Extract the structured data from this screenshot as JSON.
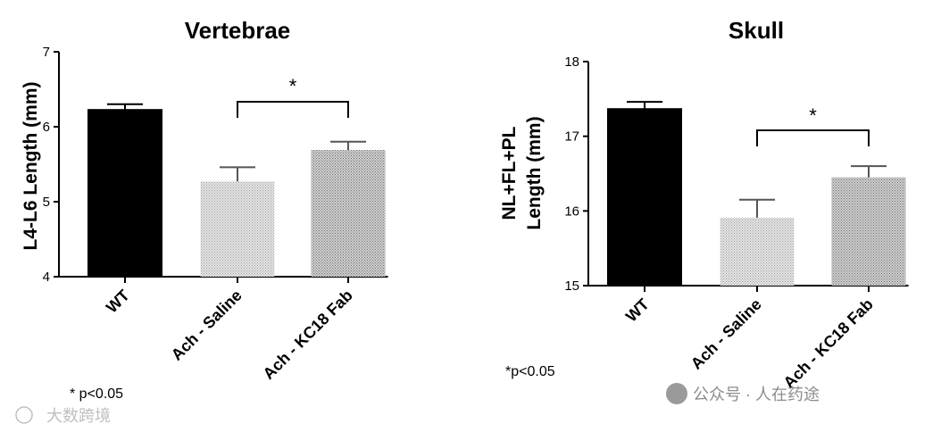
{
  "chart_data": [
    {
      "type": "bar",
      "title": "Vertebrae",
      "ylabel": "L4-L6 Length (mm)",
      "xlabel": "",
      "ylim": [
        4,
        7
      ],
      "yticks": [
        4,
        5,
        6,
        7
      ],
      "categories": [
        "WT",
        "Ach - Saline",
        "Ach - KC18 Fab"
      ],
      "values": [
        6.23,
        5.27,
        5.69
      ],
      "error": [
        0.07,
        0.19,
        0.11
      ],
      "significance": {
        "from": "Ach - Saline",
        "to": "Ach - KC18 Fab",
        "label": "*"
      },
      "footnote": "* p<0.05",
      "grid": false
    },
    {
      "type": "bar",
      "title": "Skull",
      "ylabel_lines": [
        "NL+FL+PL",
        "Length (mm)"
      ],
      "xlabel": "",
      "ylim": [
        15,
        18
      ],
      "yticks": [
        15,
        16,
        17,
        18
      ],
      "categories": [
        "WT",
        "Ach - Saline",
        "Ach - KC18 Fab"
      ],
      "values": [
        17.37,
        15.91,
        16.45
      ],
      "error": [
        0.09,
        0.24,
        0.15
      ],
      "significance": {
        "from": "Ach - Saline",
        "to": "Ach - KC18 Fab",
        "label": "*"
      },
      "footnote": "*p<0.05",
      "grid": false
    }
  ],
  "colors": {
    "wt_fill": "#000000",
    "saline_fill": "#d4d4d4",
    "fab_fill": "#b3b3b3",
    "axis": "#000000"
  },
  "watermarks": {
    "left": "大数跨境",
    "right": "公众号 · 人在药途"
  }
}
